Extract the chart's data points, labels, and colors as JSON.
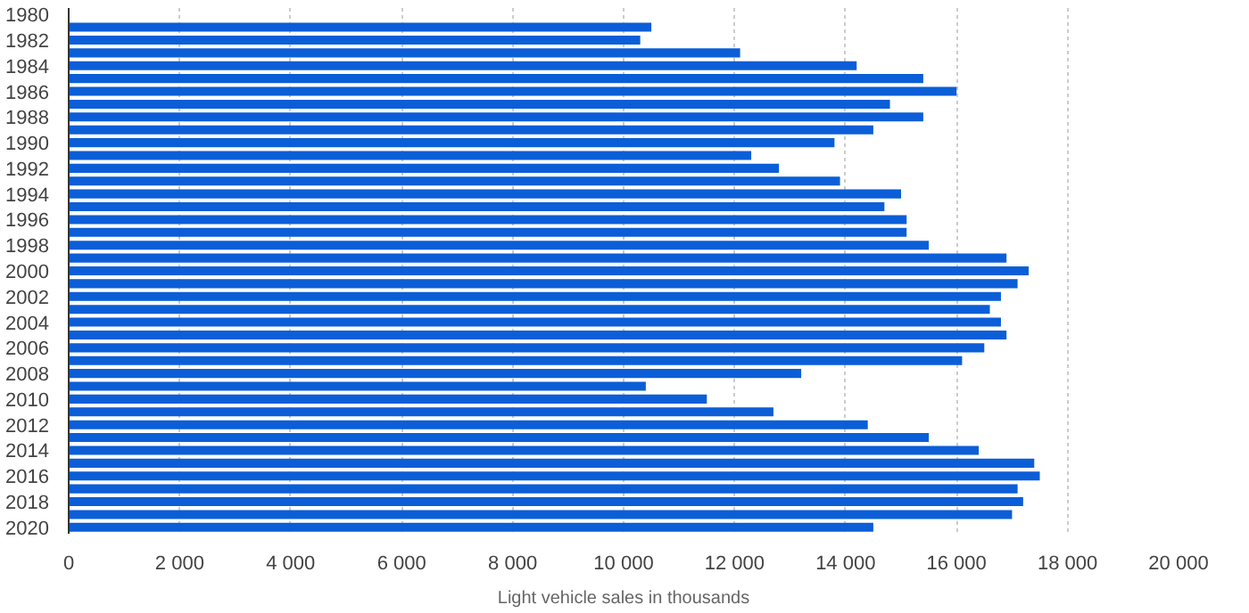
{
  "chart_data": {
    "type": "bar",
    "orientation": "horizontal",
    "xlabel": "Light vehicle sales in thousands",
    "categories": [
      "1980",
      null,
      "1982",
      null,
      "1984",
      null,
      "1986",
      null,
      "1988",
      null,
      "1990",
      null,
      "1992",
      null,
      "1994",
      null,
      "1996",
      null,
      "1998",
      null,
      "2000",
      null,
      "2002",
      null,
      "2004",
      null,
      "2006",
      null,
      "2008",
      null,
      "2010",
      null,
      "2012",
      null,
      "2014",
      null,
      "2016",
      null,
      "2018",
      null,
      "2020"
    ],
    "values": [
      null,
      10500,
      10300,
      12100,
      14200,
      15400,
      16000,
      14800,
      15400,
      14500,
      13800,
      12300,
      12800,
      13900,
      15000,
      14700,
      15100,
      15100,
      15500,
      16900,
      17300,
      17100,
      16800,
      16600,
      16800,
      16900,
      16500,
      16100,
      13200,
      10400,
      11500,
      12700,
      14400,
      15500,
      16400,
      17400,
      17500,
      17100,
      17200,
      17000,
      14500
    ],
    "color": "#0b5ed7",
    "xlim": [
      0,
      20000
    ],
    "xticks": [
      {
        "value": 0,
        "label": "0"
      },
      {
        "value": 2000,
        "label": "2 000"
      },
      {
        "value": 4000,
        "label": "4 000"
      },
      {
        "value": 6000,
        "label": "6 000"
      },
      {
        "value": 8000,
        "label": "8 000"
      },
      {
        "value": 10000,
        "label": "10 000"
      },
      {
        "value": 12000,
        "label": "12 000"
      },
      {
        "value": 14000,
        "label": "14 000"
      },
      {
        "value": 16000,
        "label": "16 000"
      },
      {
        "value": 18000,
        "label": "18 000"
      },
      {
        "value": 20000,
        "label": "20 000"
      }
    ],
    "grid": "x"
  }
}
